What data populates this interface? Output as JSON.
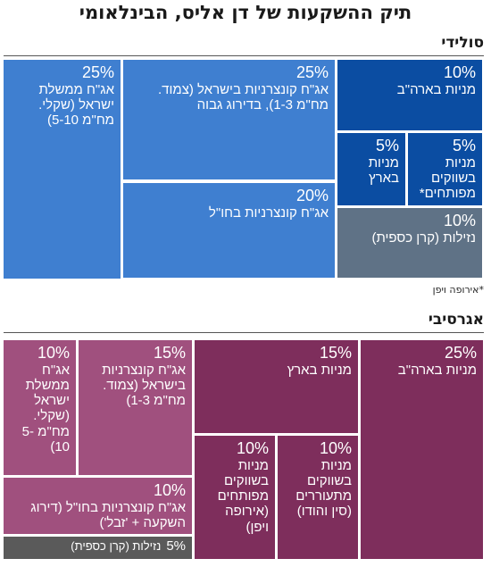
{
  "title": "תיק ההשקעות של דן אליס, הבינלאומי",
  "chart_data": [
    {
      "type": "treemap",
      "name": "סולידי",
      "footnote": "*אירופה ויפן",
      "segments": [
        {
          "key": "s_israel_gov",
          "value": 25,
          "pct": "25%",
          "label": "אג\"ח ממשלת ישראל (שקלי. מח\"מ 5-10)",
          "color": "#3f7fd0"
        },
        {
          "key": "s_israel_corp",
          "value": 25,
          "pct": "25%",
          "label": "אג\"ח קונצרניות בישראל (צמוד. מח\"מ 1-3), בדירוג גבוה",
          "color": "#3f7fd0"
        },
        {
          "key": "s_global_corp",
          "value": 20,
          "pct": "20%",
          "label": "אג\"ח קונצרניות בחו\"ל",
          "color": "#3f7fd0"
        },
        {
          "key": "s_us_stocks",
          "value": 10,
          "pct": "10%",
          "label": "מניות בארה\"ב",
          "color": "#0b4da2"
        },
        {
          "key": "s_local_stocks",
          "value": 5,
          "pct": "5%",
          "label": "מניות בארץ",
          "color": "#0b4da2"
        },
        {
          "key": "s_developed",
          "value": 5,
          "pct": "5%",
          "label": "מניות בשווקים מפותחים*",
          "color": "#0b4da2"
        },
        {
          "key": "s_cash",
          "value": 10,
          "pct": "10%",
          "label": "נזילות (קרן כספית)",
          "color": "#5f7286"
        }
      ]
    },
    {
      "type": "treemap",
      "name": "אגרסיבי",
      "segments": [
        {
          "key": "a_israel_gov",
          "value": 10,
          "pct": "10%",
          "label": "אג\"ח ממשלת ישראל (שקלי. מח\"מ 5-10)",
          "color": "#a0507e"
        },
        {
          "key": "a_israel_corp",
          "value": 15,
          "pct": "15%",
          "label": "אג\"ח קונצרניות בישראל (צמוד. מח\"מ 1-3)",
          "color": "#a0507e"
        },
        {
          "key": "a_local_stocks",
          "value": 15,
          "pct": "15%",
          "label": "מניות בארץ",
          "color": "#7e2e5c"
        },
        {
          "key": "a_us_stocks",
          "value": 25,
          "pct": "25%",
          "label": "מניות בארה\"ב",
          "color": "#7e2e5c"
        },
        {
          "key": "a_global_corp",
          "value": 10,
          "pct": "10%",
          "label": "אג\"ח קונצרניות בחו\"ל (דירוג השקעה + 'זבל')",
          "color": "#a0507e"
        },
        {
          "key": "a_developed",
          "value": 10,
          "pct": "10%",
          "label": "מניות בשווקים מפותחים (אירופה ויפן)",
          "color": "#7e2e5c"
        },
        {
          "key": "a_emerging",
          "value": 10,
          "pct": "10%",
          "label": "מניות בשווקים מתעוררים (סין והודו)",
          "color": "#7e2e5c"
        },
        {
          "key": "a_cash",
          "value": 5,
          "pct": "5%",
          "label": "נזילות (קרן כספית)",
          "color": "#5a5a5a"
        }
      ]
    }
  ]
}
